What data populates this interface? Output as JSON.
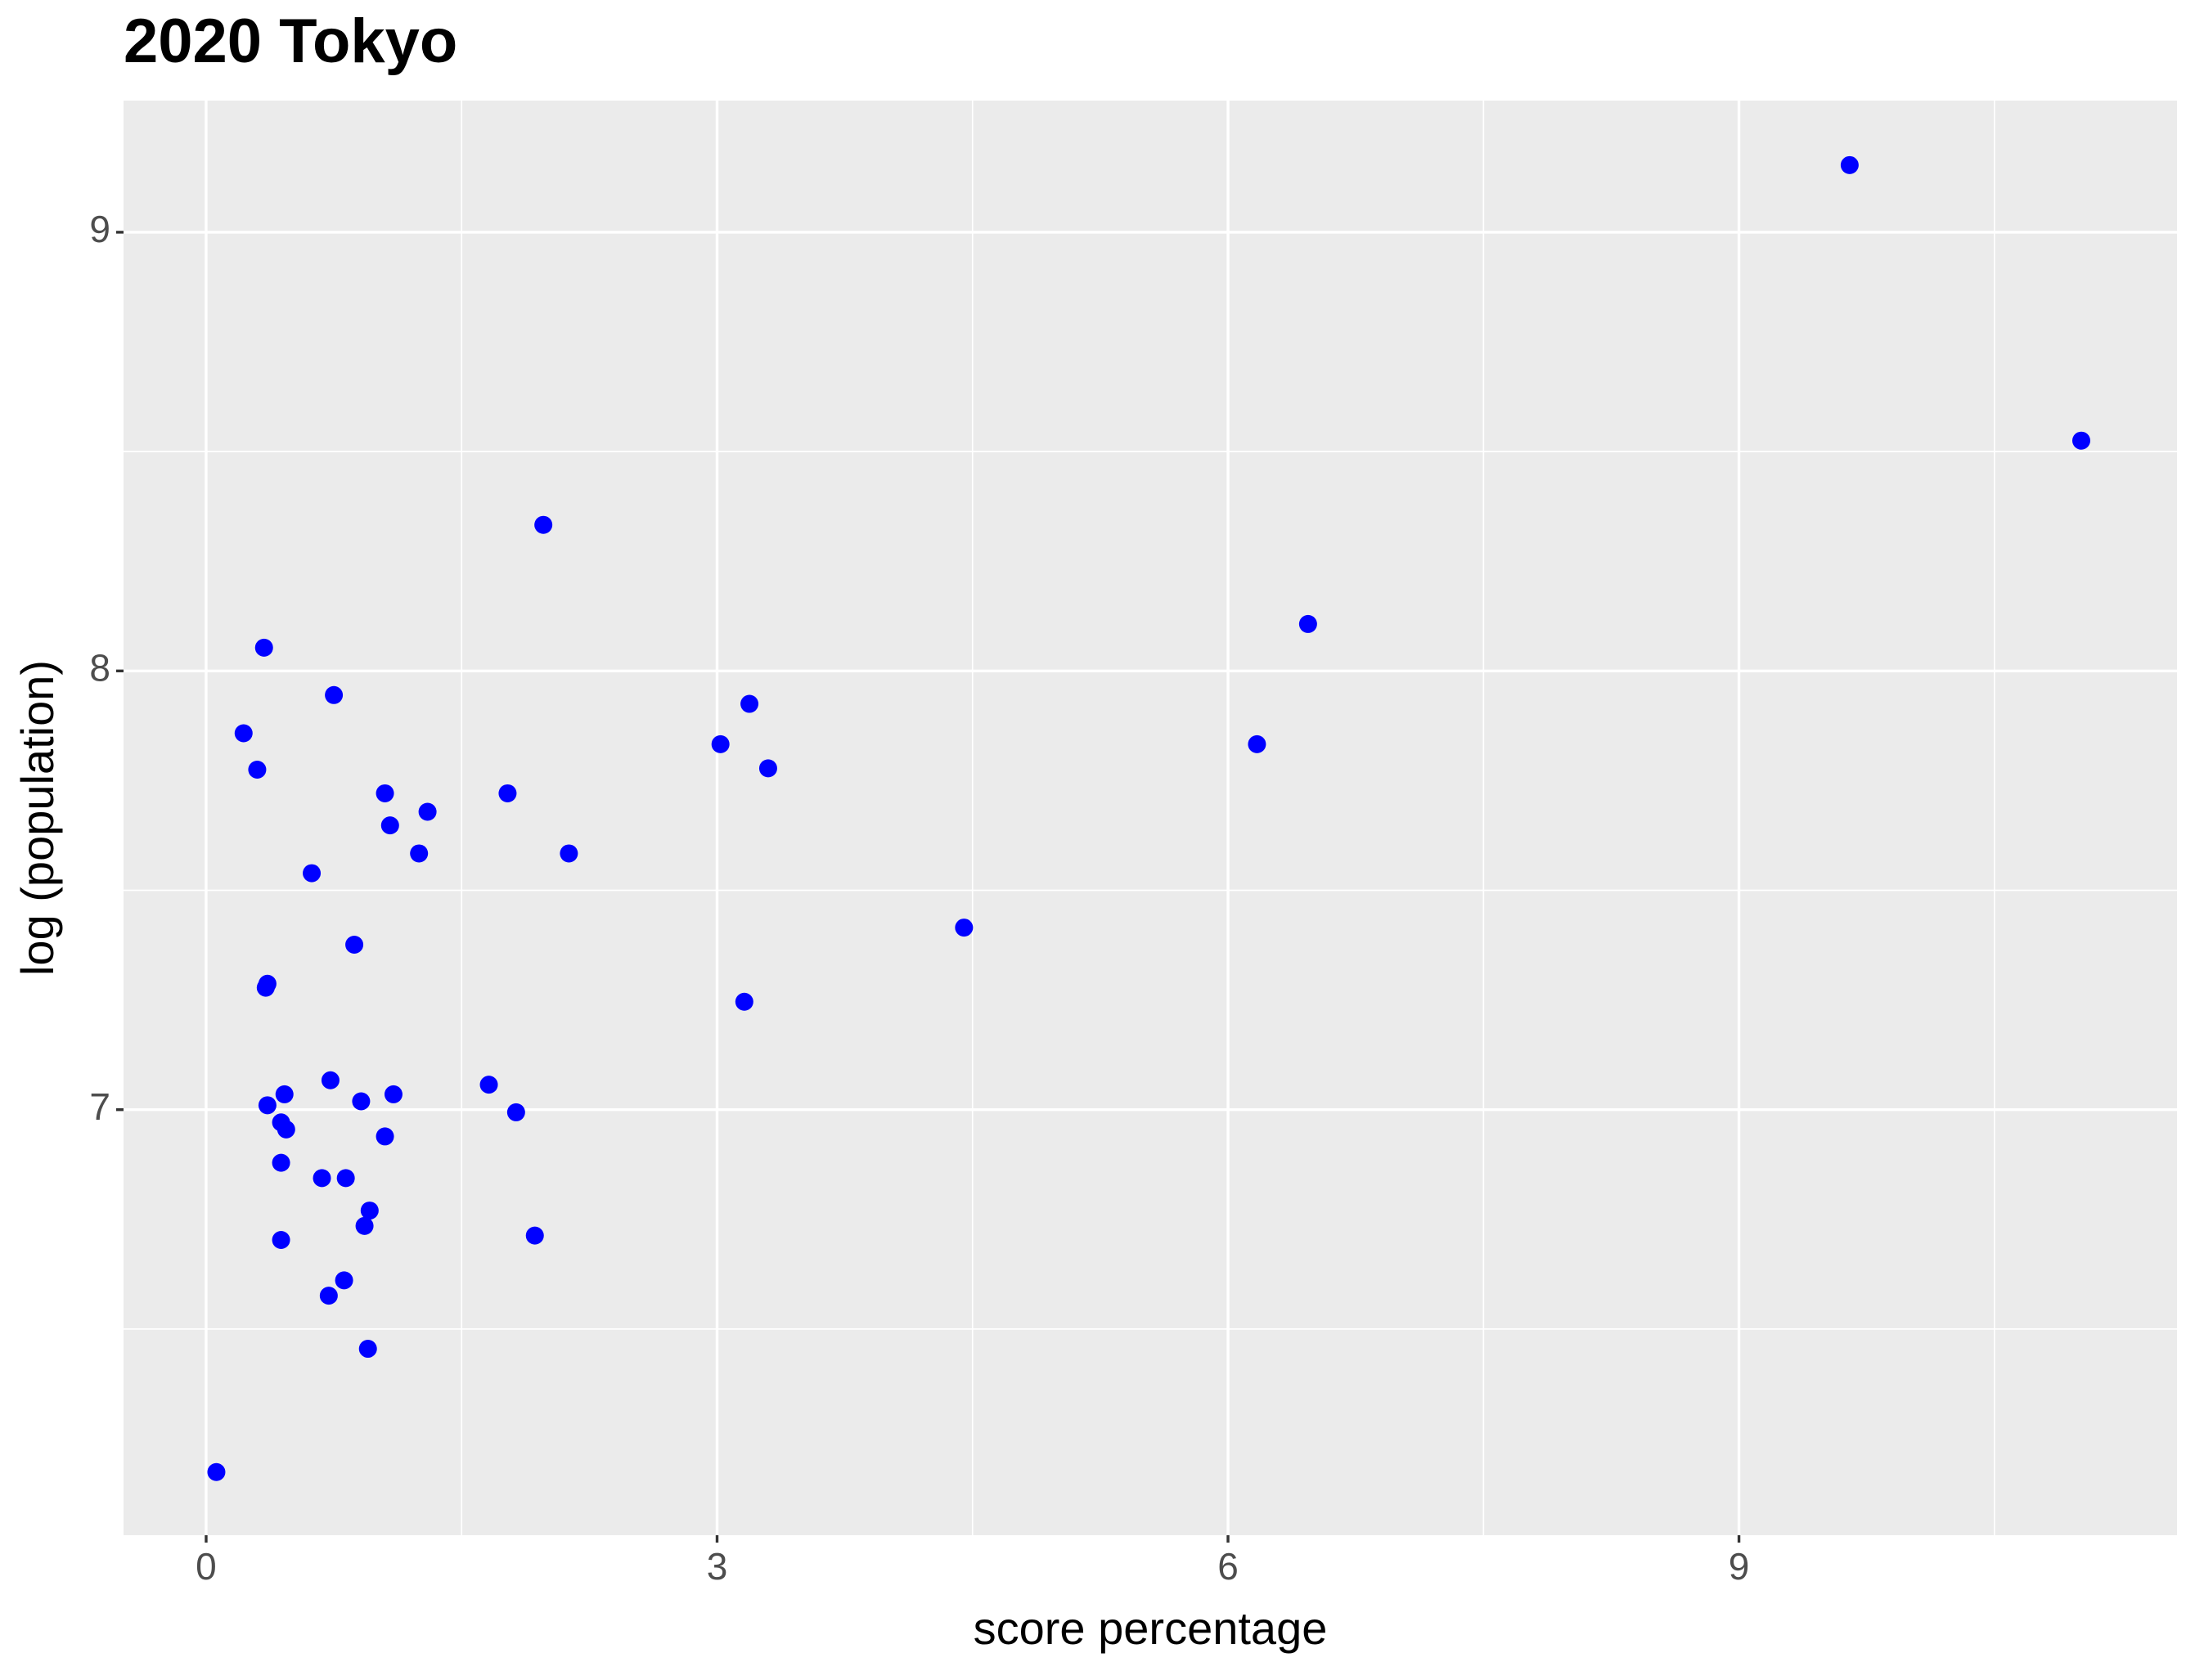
{
  "chart_data": {
    "type": "scatter",
    "title": "2020 Tokyo",
    "xlabel": "score percentage",
    "ylabel": "log (population)",
    "color": "#0000ff",
    "grid": true,
    "xlim": [
      -0.485,
      11.572
    ],
    "ylim": [
      6.03,
      9.3
    ],
    "xticks": [
      0,
      3,
      6,
      9
    ],
    "yticks": [
      7,
      8,
      9
    ],
    "x": [
      9.65,
      11.01,
      1.98,
      6.47,
      0.34,
      0.75,
      3.19,
      0.22,
      3.02,
      6.17,
      0.3,
      3.3,
      1.05,
      1.77,
      1.3,
      1.08,
      1.25,
      2.13,
      0.62,
      4.45,
      0.87,
      0.36,
      0.35,
      3.16,
      0.73,
      1.66,
      0.46,
      1.1,
      0.36,
      0.91,
      1.82,
      0.44,
      0.47,
      1.05,
      0.44,
      0.68,
      0.82,
      0.96,
      0.93,
      1.93,
      0.44,
      0.81,
      0.72,
      0.95,
      0.06
    ],
    "y": [
      9.153,
      8.525,
      8.333,
      8.107,
      8.053,
      7.945,
      7.925,
      7.858,
      7.833,
      7.833,
      7.775,
      7.778,
      7.721,
      7.721,
      7.679,
      7.648,
      7.584,
      7.584,
      7.539,
      7.415,
      7.376,
      7.287,
      7.278,
      7.246,
      7.067,
      7.057,
      7.035,
      7.035,
      7.01,
      7.019,
      6.994,
      6.971,
      6.955,
      6.939,
      6.879,
      6.844,
      6.844,
      6.77,
      6.735,
      6.713,
      6.703,
      6.611,
      6.576,
      6.455,
      6.174
    ]
  }
}
